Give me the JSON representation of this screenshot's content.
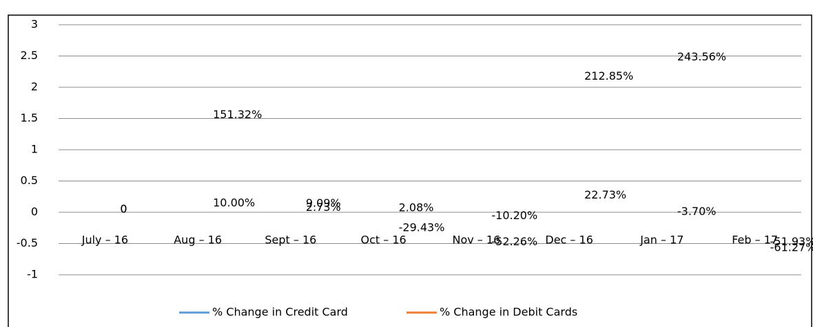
{
  "chart_data": {
    "type": "line",
    "categories": [
      "July – 16",
      "Aug – 16",
      "Sept – 16",
      "Oct – 16",
      "Nov – 16",
      "Dec – 16",
      "Jan – 17",
      "Feb – 17"
    ],
    "series": [
      {
        "name": "% Change in Credit Card",
        "color": "#5b9bd5",
        "values": [
          0,
          0.1,
          0.0909,
          0.0208,
          -0.102,
          0.2273,
          -0.037,
          -0.5193
        ],
        "value_labels": [
          "0",
          "10.00%",
          "9.09%",
          "2.08%",
          "-10.20%",
          "22.73%",
          "-3.70%",
          "-51.93%"
        ]
      },
      {
        "name": "% Change in Debit Cards",
        "color": "#ed7d31",
        "values": [
          0,
          1.5132,
          0.0273,
          -0.2943,
          -0.5226,
          2.1285,
          2.4356,
          -0.6127
        ],
        "value_labels": [
          "0",
          "151.32%",
          "2.73%",
          "-29.43%",
          "-52.26%",
          "212.85%",
          "243.56%",
          "-61.27%"
        ]
      }
    ],
    "ylim": [
      -1,
      3
    ],
    "yticks": [
      -1,
      -0.5,
      0,
      0.5,
      1,
      1.5,
      2,
      2.5,
      3
    ],
    "grid": true,
    "legend": "bottom"
  }
}
